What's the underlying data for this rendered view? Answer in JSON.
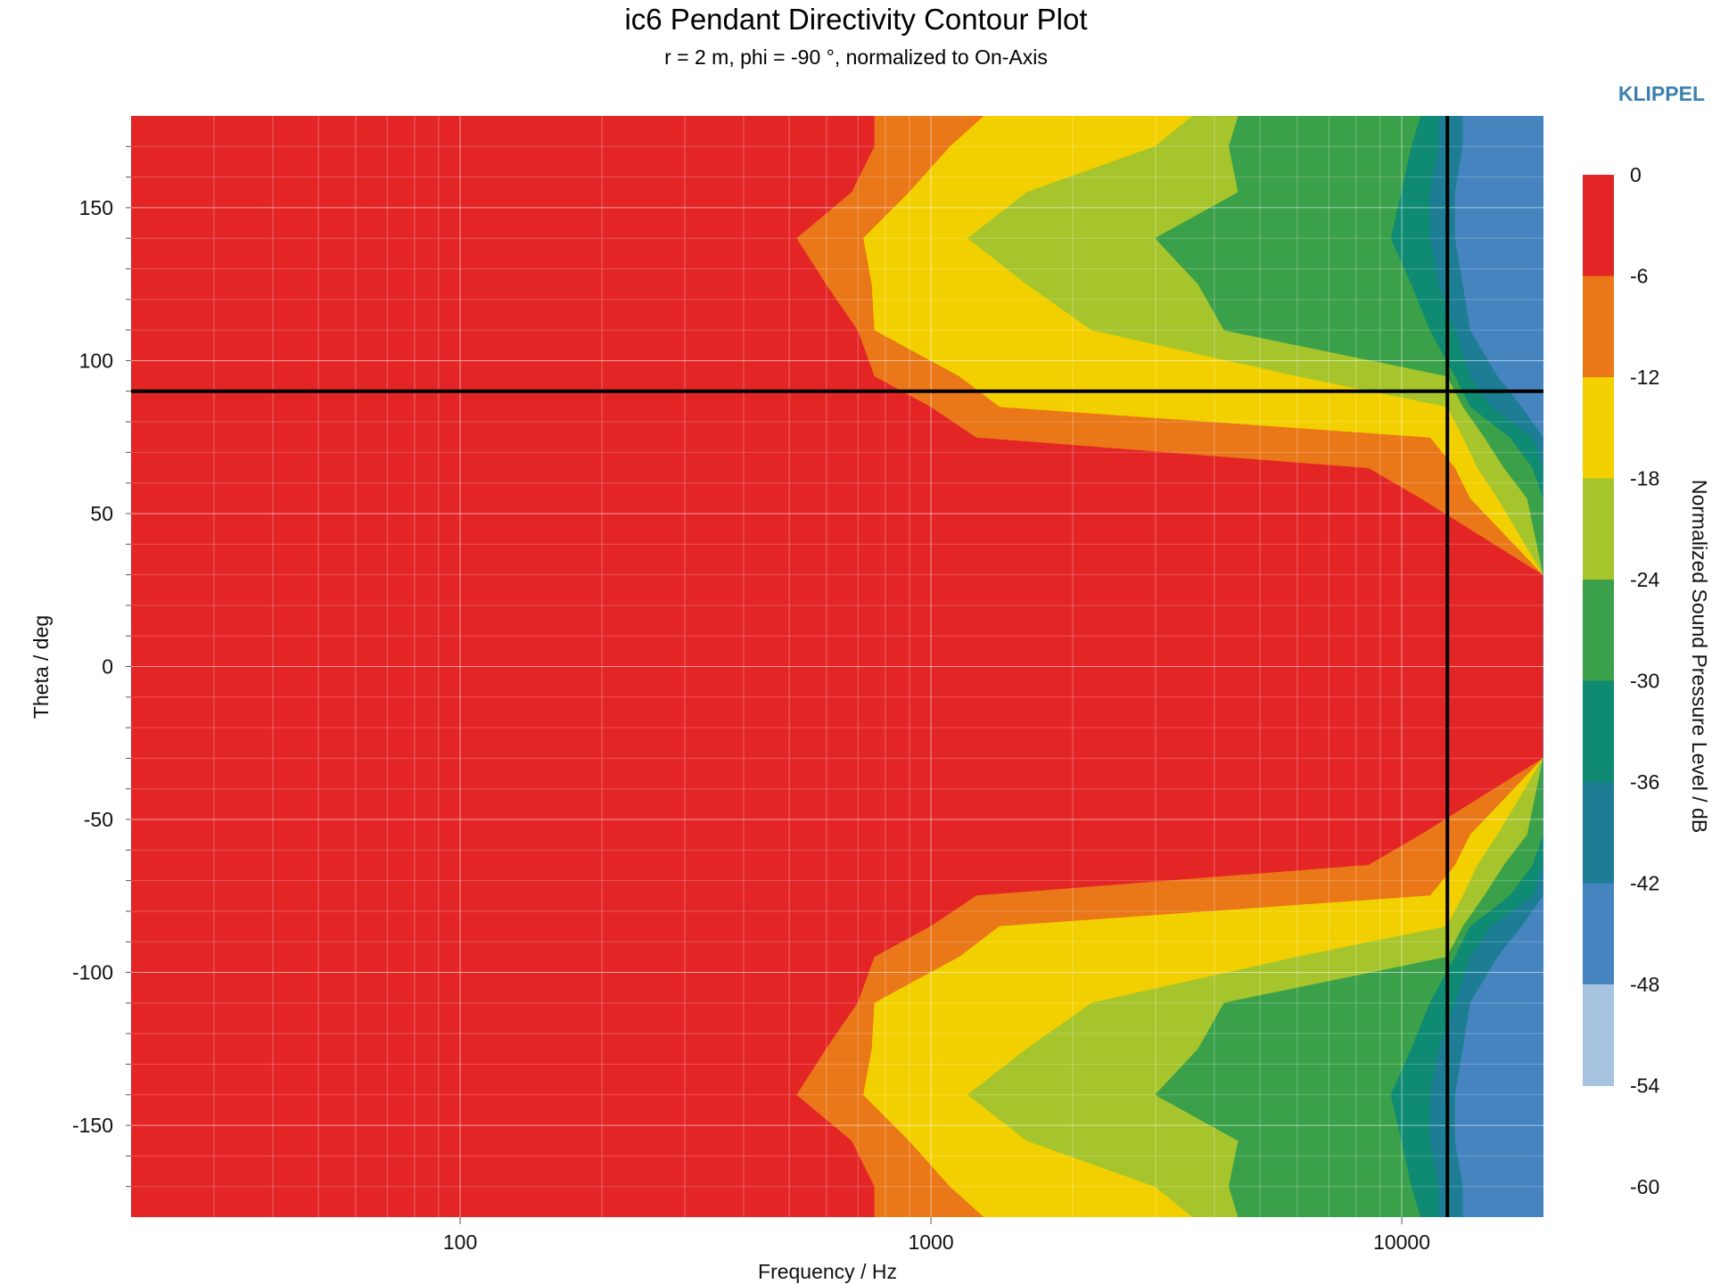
{
  "chart_data": {
    "type": "heatmap",
    "title": "ic6 Pendant Directivity Contour Plot",
    "subtitle": "r = 2 m, phi = -90 °, normalized to On-Axis",
    "brand": "KLIPPEL",
    "xlabel": "Frequency / Hz",
    "ylabel": "Theta / deg",
    "x_scale": "log",
    "xlim": [
      20,
      20000
    ],
    "ylim": [
      -180,
      180
    ],
    "x_ticks": [
      {
        "value": 100,
        "label": "100"
      },
      {
        "value": 1000,
        "label": "1000"
      },
      {
        "value": 10000,
        "label": "10000"
      }
    ],
    "y_ticks": [
      {
        "value": 150,
        "label": "150"
      },
      {
        "value": 100,
        "label": "100"
      },
      {
        "value": 50,
        "label": "50"
      },
      {
        "value": 0,
        "label": "0"
      },
      {
        "value": -50,
        "label": "-50"
      },
      {
        "value": -100,
        "label": "-100"
      },
      {
        "value": -150,
        "label": "-150"
      }
    ],
    "grid": true,
    "crosshair": {
      "frequency": 12500,
      "theta": 90
    },
    "colorbar": {
      "label": "Normalized Sound Pressure Level / dB",
      "ticks": [
        "0",
        "-6",
        "-12",
        "-18",
        "-24",
        "-30",
        "-36",
        "-42",
        "-48",
        "-54",
        "-60"
      ],
      "bands": [
        {
          "from": 0,
          "to": -6,
          "color": "#e32526"
        },
        {
          "from": -6,
          "to": -12,
          "color": "#ea7718"
        },
        {
          "from": -12,
          "to": -18,
          "color": "#f2d000"
        },
        {
          "from": -18,
          "to": -24,
          "color": "#a6c52c"
        },
        {
          "from": -24,
          "to": -30,
          "color": "#3aa049"
        },
        {
          "from": -30,
          "to": -36,
          "color": "#0f8a73"
        },
        {
          "from": -36,
          "to": -42,
          "color": "#1c7d94"
        },
        {
          "from": -42,
          "to": -48,
          "color": "#4684bf"
        },
        {
          "from": -48,
          "to": -54,
          "color": "#a6c4e0"
        }
      ]
    },
    "contours": {
      "theta_deg": [
        0,
        30,
        55,
        65,
        75,
        85,
        95,
        110,
        125,
        140,
        155,
        170,
        180
      ],
      "band_edges": [
        {
          "level": -6,
          "freq_hz": [
            20000,
            20000,
            11000,
            8500,
            1250,
            1000,
            760,
            700,
            600,
            520,
            680,
            760,
            760
          ]
        },
        {
          "level": -12,
          "freq_hz": [
            20000,
            20000,
            14000,
            13000,
            11500,
            1400,
            1150,
            760,
            750,
            720,
            900,
            1100,
            1300
          ]
        },
        {
          "level": -18,
          "freq_hz": [
            20000,
            20000,
            16000,
            14500,
            13500,
            12500,
            6000,
            2200,
            1600,
            1200,
            1600,
            3000,
            3600
          ]
        },
        {
          "level": -24,
          "freq_hz": [
            20000,
            20000,
            18500,
            16500,
            15000,
            13500,
            12500,
            4200,
            3700,
            3000,
            4500,
            4300,
            4500
          ]
        },
        {
          "level": -30,
          "freq_hz": [
            20000,
            20000,
            20000,
            19000,
            17000,
            14000,
            13000,
            11500,
            10500,
            9500,
            10000,
            10500,
            11000
          ]
        },
        {
          "level": -36,
          "freq_hz": [
            20000,
            20000,
            20000,
            20000,
            19000,
            15500,
            14000,
            13000,
            12000,
            11500,
            11500,
            12000,
            12000
          ]
        },
        {
          "level": -42,
          "freq_hz": [
            20000,
            20000,
            20000,
            20000,
            20000,
            18000,
            16000,
            14000,
            13500,
            13000,
            13000,
            13500,
            13500
          ]
        }
      ]
    }
  }
}
